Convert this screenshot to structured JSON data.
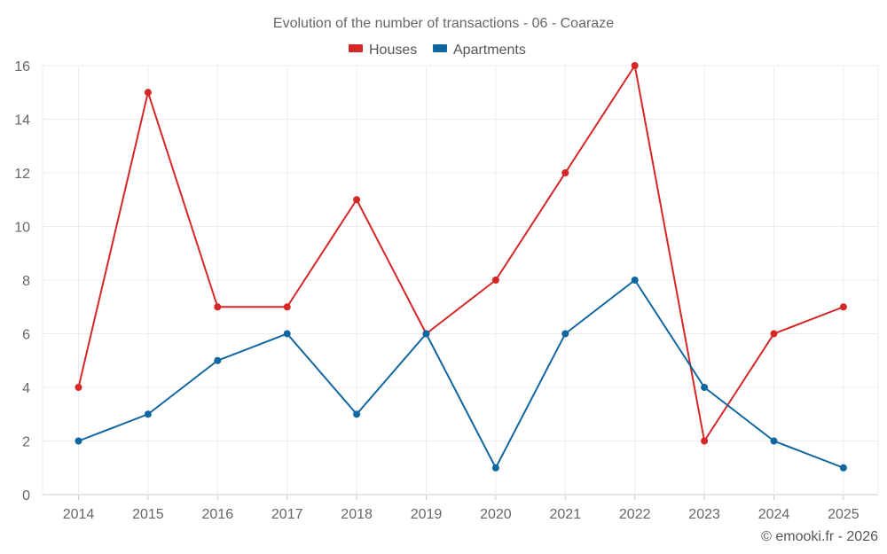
{
  "chart_data": {
    "type": "line",
    "title": "Evolution of the number of transactions - 06 - Coaraze",
    "categories": [
      "2014",
      "2015",
      "2016",
      "2017",
      "2018",
      "2019",
      "2020",
      "2021",
      "2022",
      "2023",
      "2024",
      "2025"
    ],
    "series": [
      {
        "name": "Houses",
        "color": "#d62728",
        "values": [
          4,
          15,
          7,
          7,
          11,
          6,
          8,
          12,
          16,
          2,
          6,
          7
        ]
      },
      {
        "name": "Apartments",
        "color": "#1066a0",
        "values": [
          2,
          3,
          5,
          6,
          3,
          6,
          1,
          6,
          8,
          4,
          2,
          1
        ]
      }
    ],
    "yticks": [
      "0",
      "2",
      "4",
      "6",
      "8",
      "10",
      "12",
      "14",
      "16"
    ],
    "ylim": [
      0,
      16
    ],
    "xlabel": "",
    "ylabel": "",
    "grid": true,
    "legend": "top-center",
    "credit": "© emooki.fr - 2026"
  }
}
